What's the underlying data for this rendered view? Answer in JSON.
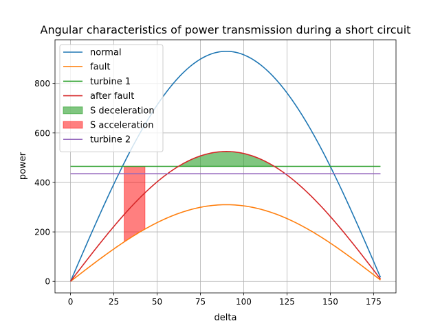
{
  "chart_data": {
    "type": "line",
    "title": "Angular characteristics of power transmission during a short circuit",
    "xlabel": "delta",
    "ylabel": "power",
    "xlim": [
      -8.95,
      187.95
    ],
    "ylim": [
      -46.5,
      976.5
    ],
    "xticks": [
      0,
      25,
      50,
      75,
      100,
      125,
      150,
      175
    ],
    "yticks": [
      0,
      200,
      400,
      600,
      800
    ],
    "grid": true,
    "legend_position": "upper-left",
    "x_domain": [
      0,
      179
    ],
    "series": [
      {
        "name": "normal",
        "kind": "sine",
        "amplitude": 930,
        "color": "#1f77b4"
      },
      {
        "name": "fault",
        "kind": "sine",
        "amplitude": 310,
        "color": "#ff7f0e"
      },
      {
        "name": "turbine 1",
        "kind": "constant",
        "value": 465,
        "color": "#2ca02c"
      },
      {
        "name": "after fault",
        "kind": "sine",
        "amplitude": 525,
        "color": "#d62728"
      },
      {
        "name": "turbine 2",
        "kind": "constant",
        "value": 435,
        "color": "#9467bd"
      }
    ],
    "areas": [
      {
        "name": "S deceleration",
        "x_from": 62.3,
        "x_to": 117.7,
        "lower": 465,
        "upper_amplitude": 525,
        "color": "#2ca02c",
        "opacity": 0.6
      },
      {
        "name": "S acceleration",
        "x_from": 31,
        "x_to": 43,
        "upper": 465,
        "lower_amplitude": 310,
        "color": "#ff0000",
        "opacity": 0.5
      }
    ],
    "legend": [
      "normal",
      "fault",
      "turbine 1",
      "after fault",
      "S deceleration",
      "S acceleration",
      "turbine 2"
    ]
  }
}
